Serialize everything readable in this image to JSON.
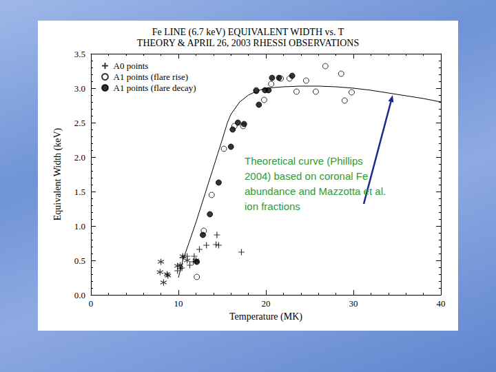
{
  "chart_data": {
    "type": "scatter",
    "title": "Fe LINE (6.7 keV) EQUIVALENT WIDTH vs. T",
    "subtitle": "THEORY & APRIL 26, 2003 RHESSI OBSERVATIONS",
    "x_label": "Temperature (MK)",
    "y_label": "Equivalent Width (keV)",
    "xlim": [
      0,
      40
    ],
    "xticks": [
      0,
      10,
      20,
      30,
      40
    ],
    "ylim": [
      0,
      3.5
    ],
    "yticks": [
      {
        "value": 0,
        "label": "0.0"
      },
      0.5,
      {
        "value": 1,
        "label": "1.0"
      },
      1.5,
      {
        "value": 2,
        "label": "2.0"
      },
      2.5,
      {
        "value": 3,
        "label": "3.0"
      },
      3.5
    ],
    "grid": false,
    "legend": "upper left",
    "annotations": [
      "Theoretical curve (Phillips\n2004) based on coronal Fe\nabundance and Mazzotta et al.\nion fractions"
    ],
    "series": [
      {
        "name": "A0 points",
        "type": "scatter",
        "marker": "plus",
        "color": "#000000",
        "x": [
          9.9,
          10.2,
          10.4,
          10.5,
          11.0,
          11.3,
          11.7,
          11.8,
          12.4,
          13.2,
          14.3,
          14.4,
          14.6,
          17.2
        ],
        "values": [
          0.35,
          0.38,
          0.39,
          0.54,
          0.56,
          0.43,
          0.48,
          0.56,
          0.66,
          0.72,
          0.73,
          0.87,
          0.72,
          0.62
        ]
      },
      {
        "name": "A0 points",
        "type": "scatter",
        "marker": "asterisk",
        "color": "#000000",
        "x": [
          7.9,
          8.0,
          8.3,
          8.7,
          8.8,
          9.9,
          10.2,
          10.5,
          11.0,
          12.0
        ],
        "values": [
          0.33,
          0.48,
          0.18,
          0.3,
          0.28,
          0.42,
          0.43,
          0.56,
          0.5,
          0.5
        ]
      },
      {
        "name": "A1 points (flare rise)",
        "type": "scatter",
        "marker": "open_circle",
        "color": "#000000",
        "x": [
          12.1,
          12.9,
          13.8,
          15.2,
          16.4,
          17.4,
          18.9,
          19.8,
          20.6,
          21.7,
          22.7,
          23.5,
          24.6,
          25.7,
          26.8,
          28.6,
          29.0,
          29.8
        ],
        "values": [
          0.26,
          0.93,
          1.45,
          2.12,
          2.45,
          2.45,
          2.97,
          2.83,
          3.06,
          3.14,
          3.14,
          2.95,
          3.11,
          2.95,
          3.32,
          3.21,
          2.82,
          2.94
        ]
      },
      {
        "name": "A1 points (flare decay)",
        "type": "scatter",
        "marker": "filled_circle",
        "color": "#000000",
        "x": [
          12.1,
          12.8,
          13.6,
          14.6,
          16.0,
          16.2,
          16.8,
          17.5,
          18.9,
          19.2,
          19.9,
          20.3,
          20.7,
          21.5,
          23.0
        ],
        "values": [
          0.48,
          0.87,
          1.17,
          1.63,
          2.15,
          2.4,
          2.5,
          2.48,
          2.96,
          2.76,
          2.97,
          2.97,
          3.15,
          3.15,
          3.18
        ]
      },
      {
        "type": "line",
        "line_style": "solid",
        "marker": "none",
        "color": "#000000",
        "x": [
          10,
          10.5,
          11,
          12,
          13,
          14,
          15,
          15.6,
          16,
          17,
          18,
          19,
          20,
          22,
          24,
          26,
          28,
          30,
          32,
          34,
          36,
          38,
          40
        ],
        "values": [
          0.25,
          0.5,
          0.68,
          1.05,
          1.45,
          1.85,
          2.25,
          2.5,
          2.62,
          2.8,
          2.9,
          2.96,
          3.0,
          3.02,
          3.03,
          3.03,
          3.02,
          3.0,
          2.97,
          2.93,
          2.89,
          2.85,
          2.8
        ]
      }
    ]
  }
}
